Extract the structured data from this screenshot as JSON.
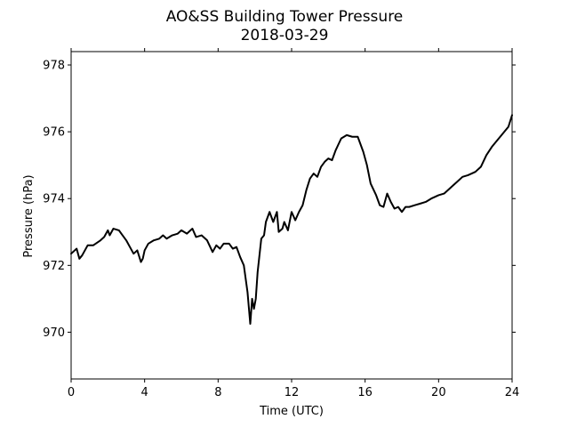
{
  "chart_data": {
    "type": "line",
    "title": "AO&SS Building Tower Pressure",
    "subtitle": "2018-03-29",
    "xlabel": "Time (UTC)",
    "ylabel": "Pressure (hPa)",
    "xlim": [
      0,
      24
    ],
    "ylim": [
      968.6,
      978.4
    ],
    "xticks": [
      0,
      4,
      8,
      12,
      16,
      20,
      24
    ],
    "yticks": [
      970,
      972,
      974,
      976,
      978
    ],
    "grid": false,
    "legend": "none",
    "line_color": "#000000",
    "series": [
      {
        "x": [
          0,
          0.3,
          0.45,
          0.6,
          0.9,
          1.2,
          1.6,
          1.8,
          2.0,
          2.1,
          2.3,
          2.6,
          2.8,
          3.0,
          3.2,
          3.4,
          3.6,
          3.8,
          3.9,
          4.0,
          4.2,
          4.5,
          4.8,
          5.0,
          5.2,
          5.5,
          5.8,
          6.0,
          6.3,
          6.6,
          6.8,
          7.1,
          7.4,
          7.7,
          7.9,
          8.1,
          8.3,
          8.6,
          8.8,
          9.0,
          9.2,
          9.4,
          9.6,
          9.75,
          9.85,
          9.95,
          10.05,
          10.15,
          10.25,
          10.35,
          10.5,
          10.6,
          10.8,
          11.0,
          11.2,
          11.3,
          11.5,
          11.6,
          11.8,
          12.0,
          12.2,
          12.4,
          12.6,
          12.8,
          13.0,
          13.2,
          13.4,
          13.6,
          13.8,
          14.0,
          14.2,
          14.4,
          14.7,
          15.0,
          15.3,
          15.6,
          15.9,
          16.1,
          16.3,
          16.6,
          16.8,
          17.0,
          17.2,
          17.4,
          17.6,
          17.8,
          18.0,
          18.2,
          18.4,
          18.7,
          19.0,
          19.3,
          19.6,
          20.0,
          20.3,
          20.6,
          21.0,
          21.3,
          21.6,
          22.0,
          22.3,
          22.6,
          22.9,
          23.2,
          23.5,
          23.8,
          24.0
        ],
        "y": [
          972.35,
          972.5,
          972.2,
          972.3,
          972.6,
          972.6,
          972.75,
          972.85,
          973.05,
          972.9,
          973.1,
          973.05,
          972.9,
          972.75,
          972.55,
          972.35,
          972.45,
          972.1,
          972.2,
          972.45,
          972.65,
          972.75,
          972.8,
          972.9,
          972.8,
          972.9,
          972.95,
          973.05,
          972.95,
          973.1,
          972.85,
          972.9,
          972.75,
          972.4,
          972.6,
          972.5,
          972.65,
          972.65,
          972.5,
          972.55,
          972.25,
          972.0,
          971.2,
          970.25,
          971.0,
          970.7,
          971.0,
          971.8,
          972.3,
          972.8,
          972.9,
          973.3,
          973.6,
          973.3,
          973.6,
          973.0,
          973.1,
          973.3,
          973.05,
          973.6,
          973.35,
          973.6,
          973.8,
          974.25,
          974.6,
          974.75,
          974.65,
          974.95,
          975.1,
          975.2,
          975.15,
          975.45,
          975.8,
          975.9,
          975.85,
          975.85,
          975.4,
          975.0,
          974.45,
          974.1,
          973.8,
          973.75,
          974.15,
          973.9,
          973.7,
          973.75,
          973.6,
          973.75,
          973.75,
          973.8,
          973.85,
          973.9,
          974.0,
          974.1,
          974.15,
          974.3,
          974.5,
          974.65,
          974.7,
          974.8,
          974.95,
          975.3,
          975.55,
          975.75,
          975.95,
          976.15,
          976.5
        ]
      }
    ]
  }
}
